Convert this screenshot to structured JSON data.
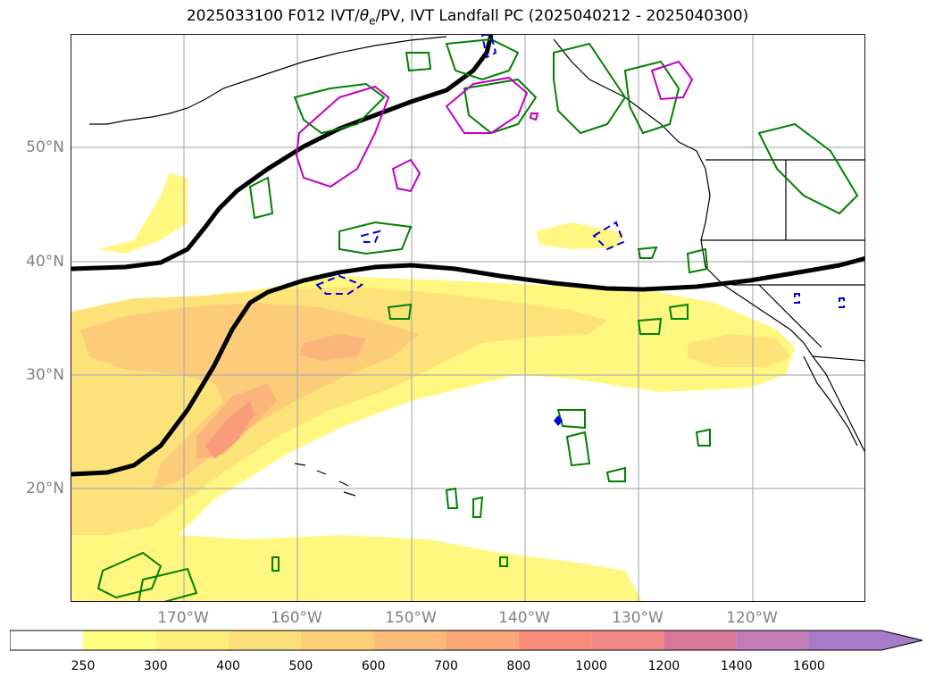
{
  "title": {
    "prefix": "2025033100 F012 IVT/",
    "theta": "θ",
    "theta_sub": "e",
    "suffix": "/PV, IVT Landfall PC (2025040212 - 2025040300)"
  },
  "map": {
    "lat_labels": [
      "50°N",
      "40°N",
      "30°N",
      "20°N"
    ],
    "lon_labels": [
      "170°W",
      "160°W",
      "150°W",
      "140°W",
      "130°W",
      "120°W"
    ],
    "colors": {
      "ivt_fill_1": "#fff57a",
      "ivt_fill_2": "#fde37a",
      "ivt_fill_3": "#fdcf7a",
      "ivt_fill_4": "#fbb67a",
      "ivt_fill_5": "#f99c7a",
      "pv_contour": "#008000",
      "theta_contour": "#c000c0",
      "dashed_contour": "#0000dd",
      "coastline": "#000000",
      "gridline": "#b0b0b0"
    }
  },
  "colorbar": {
    "ticks": [
      "250",
      "300",
      "400",
      "500",
      "600",
      "700",
      "800",
      "1000",
      "1200",
      "1400",
      "1600"
    ],
    "colors": [
      "#ffffff",
      "#ffff80",
      "#fff07a",
      "#fee07a",
      "#fed07a",
      "#fdbb7a",
      "#fca67a",
      "#fb8d7a",
      "#f48a86",
      "#d7779a",
      "#c47cb8",
      "#a77bc8"
    ]
  }
}
